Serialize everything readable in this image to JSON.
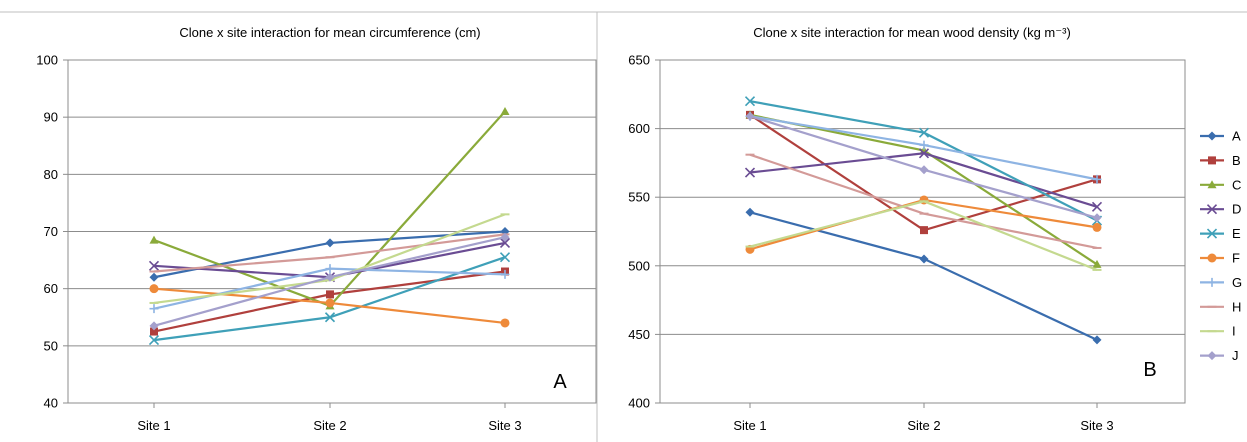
{
  "colors": {
    "A": "#3A6DAE",
    "B": "#B0403D",
    "C": "#8AAA3A",
    "D": "#6A4C93",
    "E": "#3FA0B8",
    "F": "#EE8A3A",
    "G": "#8EB4E3",
    "H": "#D39A98",
    "I": "#C4D98F",
    "J": "#A4A0CC"
  },
  "markers": {
    "A": "diamond",
    "B": "square",
    "C": "triangle",
    "D": "x",
    "E": "x",
    "F": "circle",
    "G": "plus",
    "H": "dash",
    "I": "dash",
    "J": "diamond"
  },
  "chart_data": [
    {
      "type": "line",
      "title": "Clone  x site interaction for mean circumference (cm)",
      "panel_label": "A",
      "categories": [
        "Site 1",
        "Site 2",
        "Site 3"
      ],
      "ylim": [
        40,
        100
      ],
      "yticks": [
        40,
        50,
        60,
        70,
        80,
        90,
        100
      ],
      "grid": true,
      "series": [
        {
          "name": "A",
          "values": [
            62.0,
            68.0,
            70.0
          ]
        },
        {
          "name": "B",
          "values": [
            52.5,
            59.0,
            63.0
          ]
        },
        {
          "name": "C",
          "values": [
            68.5,
            57.0,
            91.0
          ]
        },
        {
          "name": "D",
          "values": [
            64.0,
            62.0,
            68.0
          ]
        },
        {
          "name": "E",
          "values": [
            51.0,
            55.0,
            65.5
          ]
        },
        {
          "name": "F",
          "values": [
            60.0,
            57.5,
            54.0
          ]
        },
        {
          "name": "G",
          "values": [
            56.5,
            63.5,
            62.5
          ]
        },
        {
          "name": "H",
          "values": [
            63.0,
            65.5,
            69.5
          ]
        },
        {
          "name": "I",
          "values": [
            57.5,
            61.5,
            73.0
          ]
        },
        {
          "name": "J",
          "values": [
            53.5,
            62.0,
            69.0
          ]
        }
      ]
    },
    {
      "type": "line",
      "title": "Clone  x site interaction for mean wood density (kg m⁻³)",
      "panel_label": "B",
      "categories": [
        "Site 1",
        "Site 2",
        "Site 3"
      ],
      "ylim": [
        400,
        650
      ],
      "yticks": [
        400,
        450,
        500,
        550,
        600,
        650
      ],
      "grid": true,
      "legend": "right",
      "series": [
        {
          "name": "A",
          "values": [
            539,
            505,
            446
          ]
        },
        {
          "name": "B",
          "values": [
            610,
            526,
            563
          ]
        },
        {
          "name": "C",
          "values": [
            610,
            584,
            501
          ]
        },
        {
          "name": "D",
          "values": [
            568,
            582,
            543
          ]
        },
        {
          "name": "E",
          "values": [
            620,
            597,
            533
          ]
        },
        {
          "name": "F",
          "values": [
            512,
            548,
            528
          ]
        },
        {
          "name": "G",
          "values": [
            609,
            588,
            563
          ]
        },
        {
          "name": "H",
          "values": [
            581,
            538,
            513
          ]
        },
        {
          "name": "I",
          "values": [
            514,
            547,
            497
          ]
        },
        {
          "name": "J",
          "values": [
            609,
            570,
            535
          ]
        }
      ]
    }
  ]
}
